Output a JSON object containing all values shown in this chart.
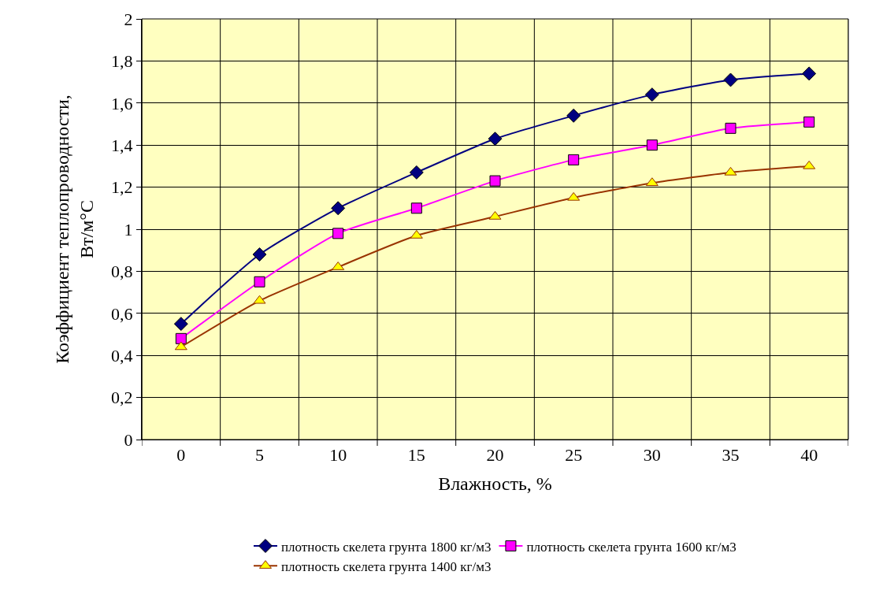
{
  "chart_data": {
    "type": "line",
    "xlabel": "Влажность, %",
    "ylabel": "Коэффициент теплопроводности,\nВт/м°С",
    "categories": [
      "0",
      "5",
      "10",
      "15",
      "20",
      "25",
      "30",
      "35",
      "40"
    ],
    "ylim": [
      0,
      2
    ],
    "yticks": [
      0,
      {
        "value": 0.2,
        "label": "0,2"
      },
      {
        "value": 0.4,
        "label": "0,4"
      },
      {
        "value": 0.6,
        "label": "0,6"
      },
      {
        "value": 0.8,
        "label": "0,8"
      },
      1,
      {
        "value": 1.2,
        "label": "1,2"
      },
      {
        "value": 1.4,
        "label": "1,4"
      },
      {
        "value": 1.6,
        "label": "1,6"
      },
      {
        "value": 1.8,
        "label": "1,8"
      },
      2
    ],
    "grid": true,
    "legend": "bottom",
    "series": [
      {
        "name": "плотность скелета грунта 1800 кг/м3",
        "color": "#000080",
        "marker": "diamond",
        "values": [
          0.55,
          0.88,
          1.1,
          1.27,
          1.43,
          1.54,
          1.64,
          1.71,
          1.74
        ]
      },
      {
        "name": "плотность скелета грунта 1600 кг/м3",
        "color": "#ff00ff",
        "marker": "square",
        "values": [
          0.48,
          0.75,
          0.98,
          1.1,
          1.23,
          1.33,
          1.4,
          1.48,
          1.51
        ]
      },
      {
        "name": "плотность скелета грунта 1400 кг/м3",
        "color": "#993300",
        "marker": "triangle",
        "values": [
          0.44,
          0.66,
          0.82,
          0.97,
          1.06,
          1.15,
          1.22,
          1.27,
          1.3
        ]
      }
    ]
  }
}
